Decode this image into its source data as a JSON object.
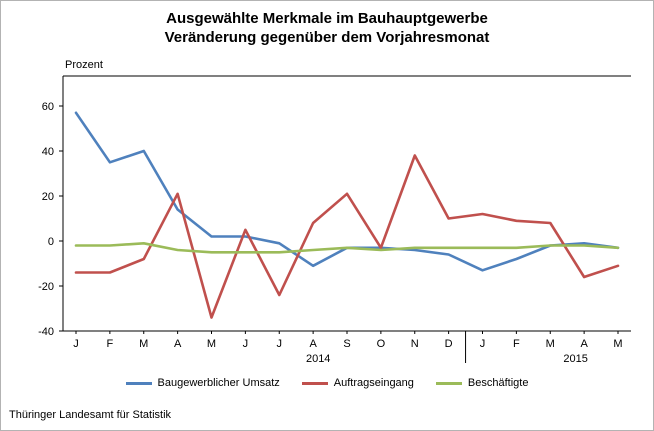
{
  "title_line1": "Ausgewählte Merkmale im Bauhauptgewerbe",
  "title_line2": "Veränderung gegenüber dem Vorjahresmonat",
  "footer": "Thüringer Landesamt für Statistik",
  "chart_data": {
    "type": "line",
    "title": "Ausgewählte Merkmale im Bauhauptgewerbe — Veränderung gegenüber dem Vorjahresmonat",
    "ylabel": "Prozent",
    "xlabel": "",
    "categories": [
      "J",
      "F",
      "M",
      "A",
      "M",
      "J",
      "J",
      "A",
      "S",
      "O",
      "N",
      "D",
      "J",
      "F",
      "M",
      "A",
      "M"
    ],
    "year_labels": [
      {
        "label": "2014",
        "under_index": 7.15
      },
      {
        "label": "2015",
        "under_index": 14.75
      }
    ],
    "year_separator_after_index": 11,
    "yticks": [
      -40,
      -20,
      0,
      20,
      40,
      60
    ],
    "ylim": [
      -40,
      60
    ],
    "grid": false,
    "legend_position": "bottom",
    "series": [
      {
        "name": "Baugewerblicher Umsatz",
        "color": "#4F81BD",
        "values": [
          57,
          35,
          40,
          14,
          2,
          2,
          -1,
          -11,
          -3,
          -3,
          -4,
          -6,
          -13,
          -8,
          -2,
          -1,
          -3
        ]
      },
      {
        "name": "Auftragseingang",
        "color": "#C0504D",
        "values": [
          -14,
          -14,
          -8,
          21,
          -34,
          5,
          -24,
          8,
          21,
          -3,
          38,
          10,
          12,
          9,
          8,
          -16,
          -11
        ]
      },
      {
        "name": "Beschäftigte",
        "color": "#9BBB59",
        "values": [
          -2,
          -2,
          -1,
          -4,
          -5,
          -5,
          -5,
          -4,
          -3,
          -4,
          -3,
          -3,
          -3,
          -3,
          -2,
          -2,
          -3
        ]
      }
    ]
  }
}
